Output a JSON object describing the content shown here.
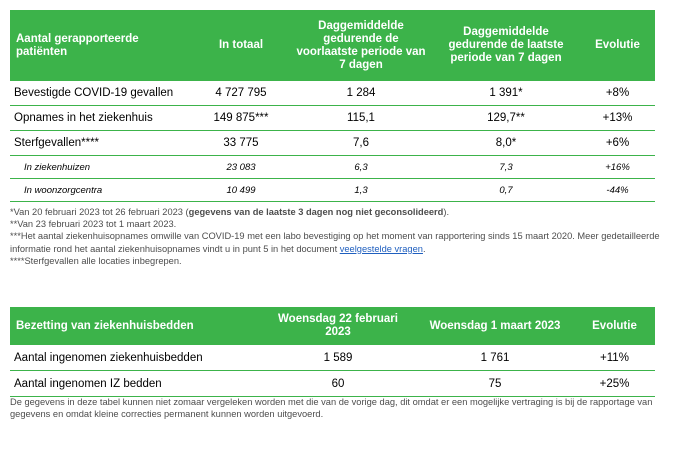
{
  "table1": {
    "headers": [
      "Aantal gerapporteerde patiënten",
      "In totaal",
      "Daggemiddelde gedurende de voorlaatste periode van 7 dagen",
      "Daggemiddelde gedurende de laatste periode van 7 dagen",
      "Evolutie"
    ],
    "rows": [
      {
        "label": "Bevestigde COVID-19 gevallen",
        "total": "4 727 795",
        "prev": "1 284",
        "last": "1 391*",
        "evo": "+8%"
      },
      {
        "label": "Opnames in het ziekenhuis",
        "total": "149 875***",
        "prev": "115,1",
        "last": "129,7**",
        "evo": "+13%"
      },
      {
        "label": "Sterfgevallen****",
        "total": "33 775",
        "prev": "7,6",
        "last": "8,0*",
        "evo": "+6%"
      },
      {
        "label": "In ziekenhuizen",
        "total": "23 083",
        "prev": "6,3",
        "last": "7,3",
        "evo": "+16%"
      },
      {
        "label": "In woonzorgcentra",
        "total": "10 499",
        "prev": "1,3",
        "last": "0,7",
        "evo": "-44%"
      }
    ]
  },
  "notes1": {
    "n1_text": "*Van 20 februari 2023 tot 26 februari 2023 (",
    "n1_bold": "gegevens van de laatste 3 dagen nog niet geconsolideerd",
    "n1_end": ").",
    "n2": "**Van 23 februari 2023 tot 1 maart 2023.",
    "n3_text": "***Het aantal ziekenhuisopnames omwille van COVID-19 met een labo bevestiging op het moment van rapportering sinds 15 maart 2020. Meer gedetailleerde informatie rond het aantal ziekenhuisopnames vindt u in punt 5 in het document ",
    "n3_link": "veelgestelde vragen",
    "n3_end": ".",
    "n4": "****Sterfgevallen alle locaties inbegrepen."
  },
  "table2": {
    "headers": [
      "Bezetting van ziekenhuisbedden",
      "Woensdag 22 februari 2023",
      "Woensdag 1 maart 2023",
      "Evolutie"
    ],
    "rows": [
      {
        "label": "Aantal ingenomen ziekenhuisbedden",
        "prev": "1 589",
        "last": "1 761",
        "evo": "+11%"
      },
      {
        "label": "Aantal ingenomen IZ bedden",
        "prev": "60",
        "last": "75",
        "evo": "+25%"
      }
    ]
  },
  "notes2": {
    "text": "De gegevens in deze tabel kunnen niet zomaar vergeleken worden met die van de vorige dag, dit omdat er een mogelijke vertraging is bij de rapportage van gegevens en omdat kleine correcties permanent kunnen worden uitgevoerd."
  },
  "colors": {
    "header_green": "#3cb34a",
    "note_gray": "#4d4d4d",
    "link_blue": "#1f5fbf"
  }
}
